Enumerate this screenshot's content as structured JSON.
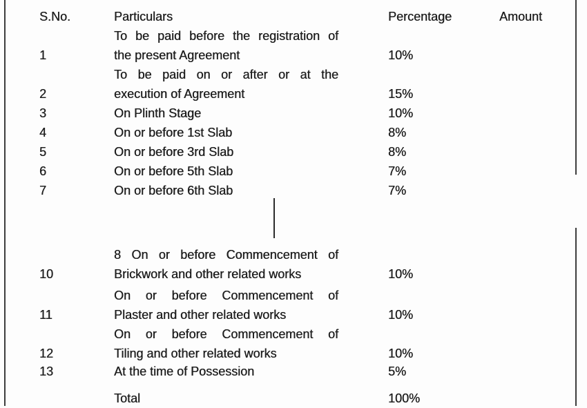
{
  "table": {
    "headers": {
      "sno": "S.No.",
      "particulars": "Particulars",
      "percentage": "Percentage",
      "amount": "Amount"
    },
    "rows_before_gap": [
      {
        "sno": "1",
        "lines": [
          "To be paid before the registration of",
          "the present Agreement"
        ],
        "percentage": "10%",
        "amount": ""
      },
      {
        "sno": "2",
        "lines": [
          "To be paid on or after or at the",
          "execution of Agreement"
        ],
        "percentage": "15%",
        "amount": ""
      },
      {
        "sno": "3",
        "lines": [
          "On Plinth Stage"
        ],
        "percentage": "10%",
        "amount": ""
      },
      {
        "sno": "4",
        "lines": [
          "On or before 1st Slab"
        ],
        "percentage": "8%",
        "amount": ""
      },
      {
        "sno": "5",
        "lines": [
          "On or before 3rd Slab"
        ],
        "percentage": "8%",
        "amount": ""
      },
      {
        "sno": "6",
        "lines": [
          "On or before 5th Slab"
        ],
        "percentage": "7%",
        "amount": ""
      },
      {
        "sno": "7",
        "lines": [
          "On or before 6th Slab"
        ],
        "percentage": "7%",
        "amount": ""
      }
    ],
    "rows_after_gap": [
      {
        "sno": "10",
        "lines": [
          "8 On or before Commencement of",
          "Brickwork and other related works"
        ],
        "percentage": "10%",
        "amount": ""
      },
      {
        "sno": "11",
        "lines": [
          "On or before Commencement of",
          "Plaster and other related works"
        ],
        "percentage": "10%",
        "amount": ""
      },
      {
        "sno": "12",
        "lines": [
          "On or before Commencement of",
          "Tiling and other related works"
        ],
        "percentage": "10%",
        "amount": ""
      },
      {
        "sno": "13",
        "lines": [
          "At the time of Possession"
        ],
        "percentage": "5%",
        "amount": ""
      }
    ],
    "total": {
      "sno": "",
      "label": "Total",
      "percentage": "100%",
      "amount": ""
    }
  },
  "colors": {
    "text": "#1f1f1f",
    "border": "#3c3c3c",
    "background": "#fdfdfd"
  }
}
